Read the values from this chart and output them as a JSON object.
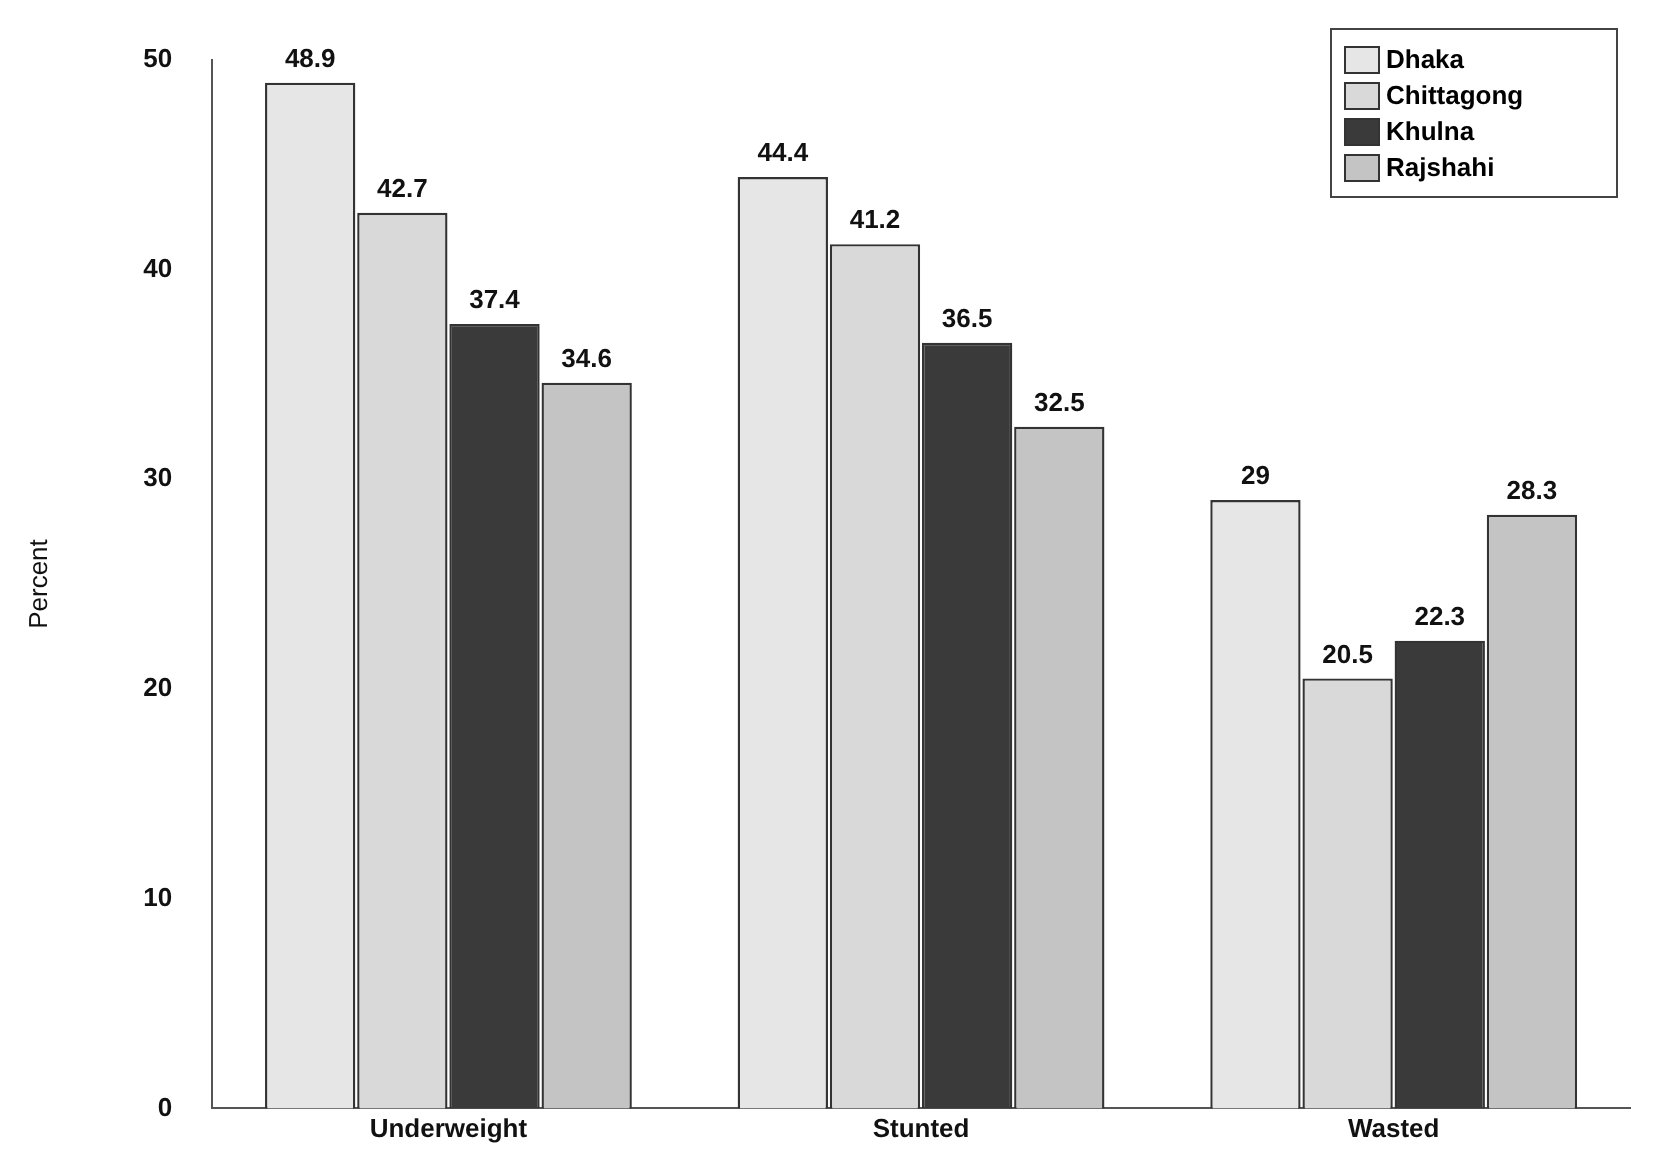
{
  "chart_data": {
    "type": "bar",
    "ylabel": "Percent",
    "categories": [
      "Underweight",
      "Stunted",
      "Wasted"
    ],
    "series": [
      {
        "name": "Dhaka",
        "color": "#e6e6e6",
        "values": [
          48.9,
          44.4,
          29
        ]
      },
      {
        "name": "Chittagong",
        "color": "#d9d9d9",
        "values": [
          42.7,
          41.2,
          20.5
        ]
      },
      {
        "name": "Khulna",
        "color": "#3a3a3a",
        "values": [
          37.4,
          36.5,
          22.3
        ]
      },
      {
        "name": "Rajshahi",
        "color": "#c4c4c4",
        "values": [
          34.6,
          32.5,
          28.3
        ]
      }
    ],
    "ylim": [
      0,
      50
    ],
    "yticks": [
      0,
      10,
      20,
      30,
      40,
      50
    ],
    "grid": false,
    "legend": "top right",
    "data_labels": true
  }
}
